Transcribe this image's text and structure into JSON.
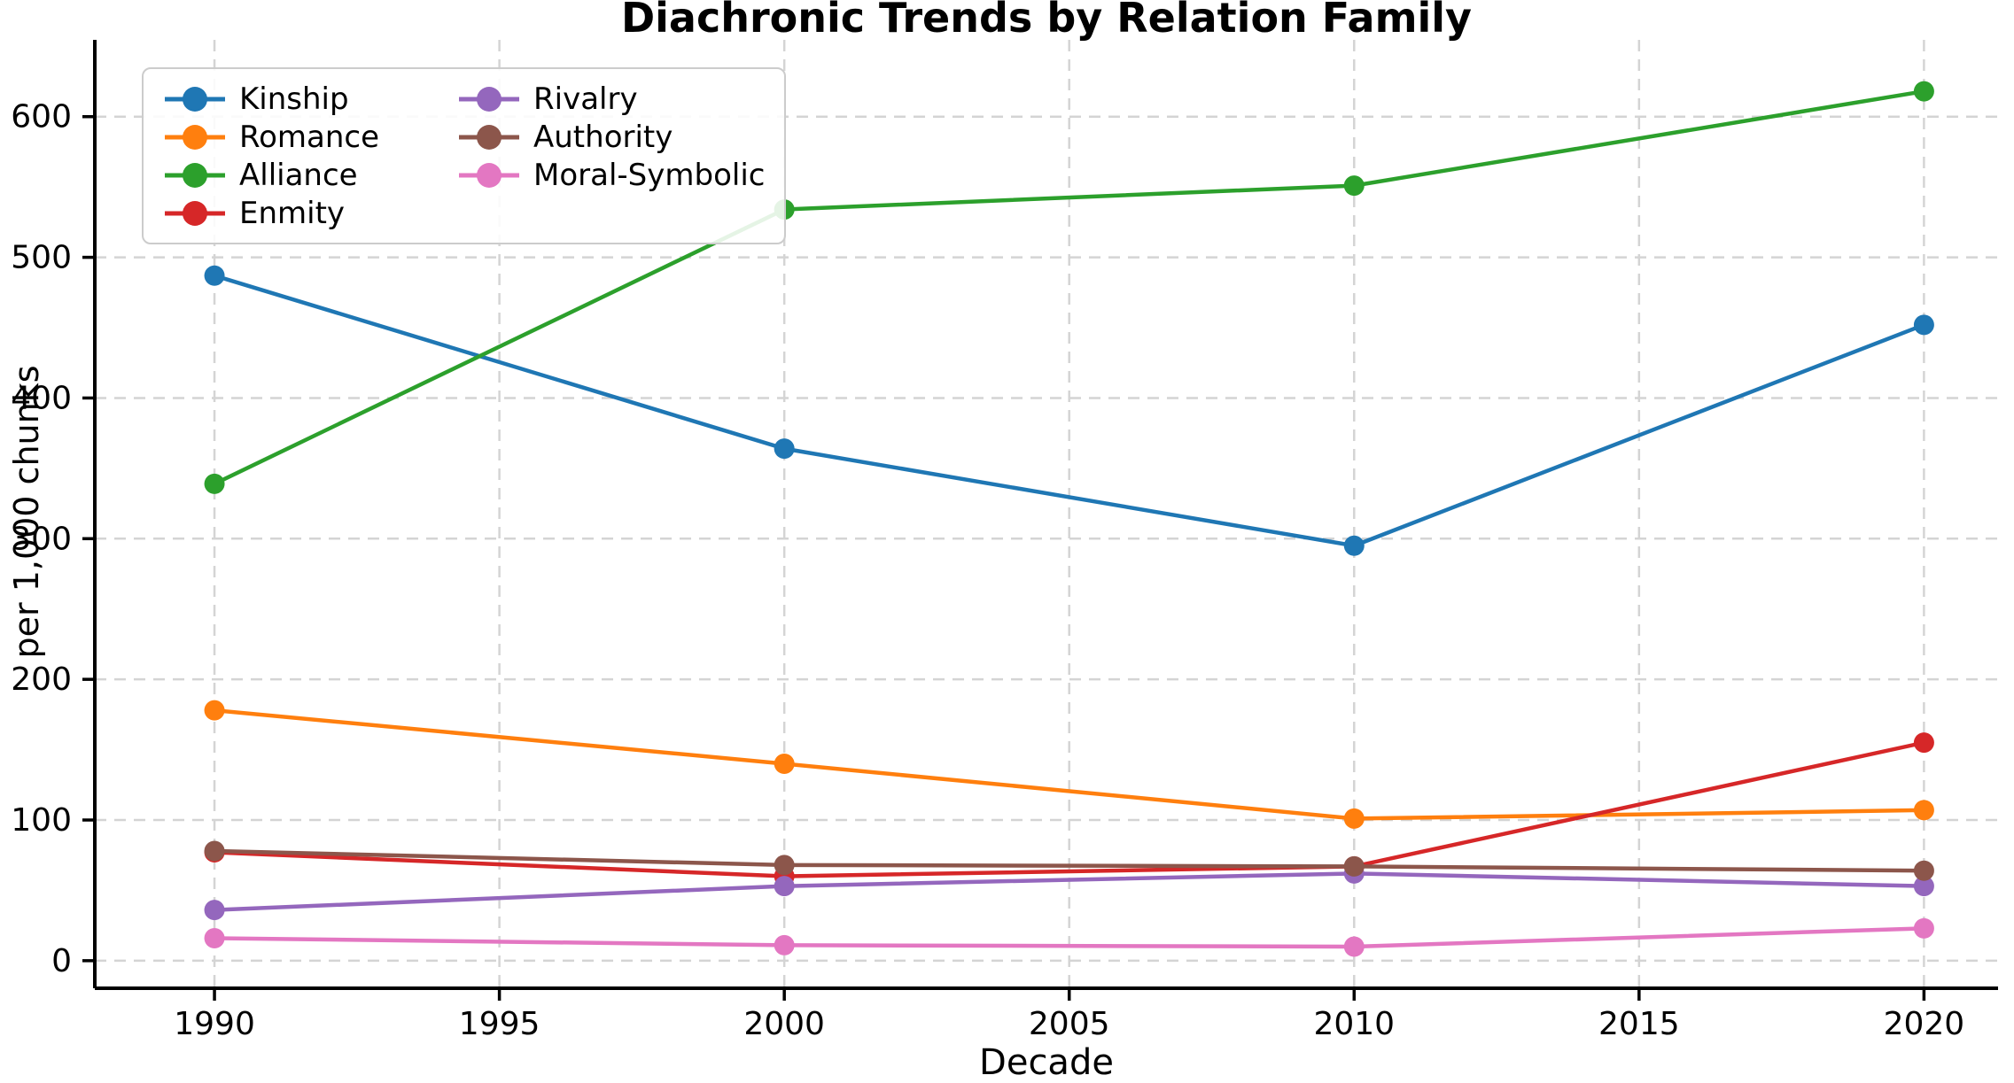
{
  "chart_data": {
    "type": "line",
    "title": "Diachronic Trends by Relation Family",
    "xlabel": "Decade",
    "ylabel": "per 1,000 chunks",
    "x": [
      1990,
      2000,
      2010,
      2020
    ],
    "xticks": [
      "1990",
      "1995",
      "2000",
      "2005",
      "2010",
      "2015",
      "2020"
    ],
    "yticks": [
      "0",
      "100",
      "200",
      "300",
      "400",
      "500",
      "600"
    ],
    "xlim": [
      1987.9,
      2021.3
    ],
    "ylim": [
      -19.6,
      654.6
    ],
    "grid": true,
    "grid_color": "#d4d4d4",
    "axis_color": "#000000",
    "text_color": "#000000",
    "legend_position": "upper-left",
    "legend_columns": 2,
    "series": [
      {
        "name": "Kinship",
        "color": "#1f77b4",
        "values": [
          487,
          364,
          295,
          452
        ]
      },
      {
        "name": "Romance",
        "color": "#ff7f0e",
        "values": [
          178,
          140,
          101,
          107
        ]
      },
      {
        "name": "Alliance",
        "color": "#2ca02c",
        "values": [
          339,
          534,
          551,
          618
        ]
      },
      {
        "name": "Enmity",
        "color": "#d62728",
        "values": [
          77,
          60,
          67,
          155
        ]
      },
      {
        "name": "Rivalry",
        "color": "#9467bd",
        "values": [
          36,
          53,
          62,
          53
        ]
      },
      {
        "name": "Authority",
        "color": "#8c564b",
        "values": [
          78,
          68,
          67,
          64
        ]
      },
      {
        "name": "Moral-Symbolic",
        "color": "#e377c2",
        "values": [
          16,
          11,
          10,
          23
        ]
      }
    ]
  }
}
